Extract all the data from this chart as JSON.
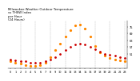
{
  "title": "Milwaukee Weather Outdoor Temperature\nvs THSW Index\nper Hour\n(24 Hours)",
  "hours": [
    0,
    1,
    2,
    3,
    4,
    5,
    6,
    7,
    8,
    9,
    10,
    11,
    12,
    13,
    14,
    15,
    16,
    17,
    18,
    19,
    20,
    21,
    22,
    23
  ],
  "temp": [
    46,
    45,
    44,
    44,
    43,
    43,
    43,
    44,
    46,
    48,
    51,
    54,
    57,
    59,
    60,
    59,
    57,
    55,
    53,
    51,
    50,
    49,
    48,
    47
  ],
  "thsw": [
    44,
    43,
    42,
    41,
    40,
    40,
    41,
    43,
    48,
    54,
    60,
    66,
    72,
    76,
    77,
    73,
    66,
    58,
    52,
    49,
    47,
    46,
    45,
    44
  ],
  "temp_color": "#cc0000",
  "thsw_color": "#ff8800",
  "bg_color": "#ffffff",
  "grid_color": "#888888",
  "ylim": [
    38,
    80
  ],
  "yticks_right": [
    51,
    57,
    63,
    69,
    75
  ],
  "title_fontsize": 2.8,
  "tick_fontsize": 2.5,
  "marker_size_thsw": 1.3,
  "marker_size_temp": 1.0,
  "dashed_vlines": [
    2,
    5,
    8,
    11,
    14,
    17,
    20,
    23
  ],
  "xticks": [
    0,
    1,
    2,
    3,
    4,
    5,
    6,
    7,
    8,
    9,
    10,
    11,
    12,
    13,
    14,
    15,
    16,
    17,
    18,
    19,
    20,
    21,
    22,
    23
  ],
  "xtick_labels": [
    "0",
    "1",
    "2",
    "3",
    "4",
    "5",
    "6",
    "7",
    "8",
    "9",
    "10",
    "11",
    "12",
    "13",
    "14",
    "15",
    "16",
    "17",
    "18",
    "19",
    "20",
    "21",
    "22",
    "23"
  ]
}
